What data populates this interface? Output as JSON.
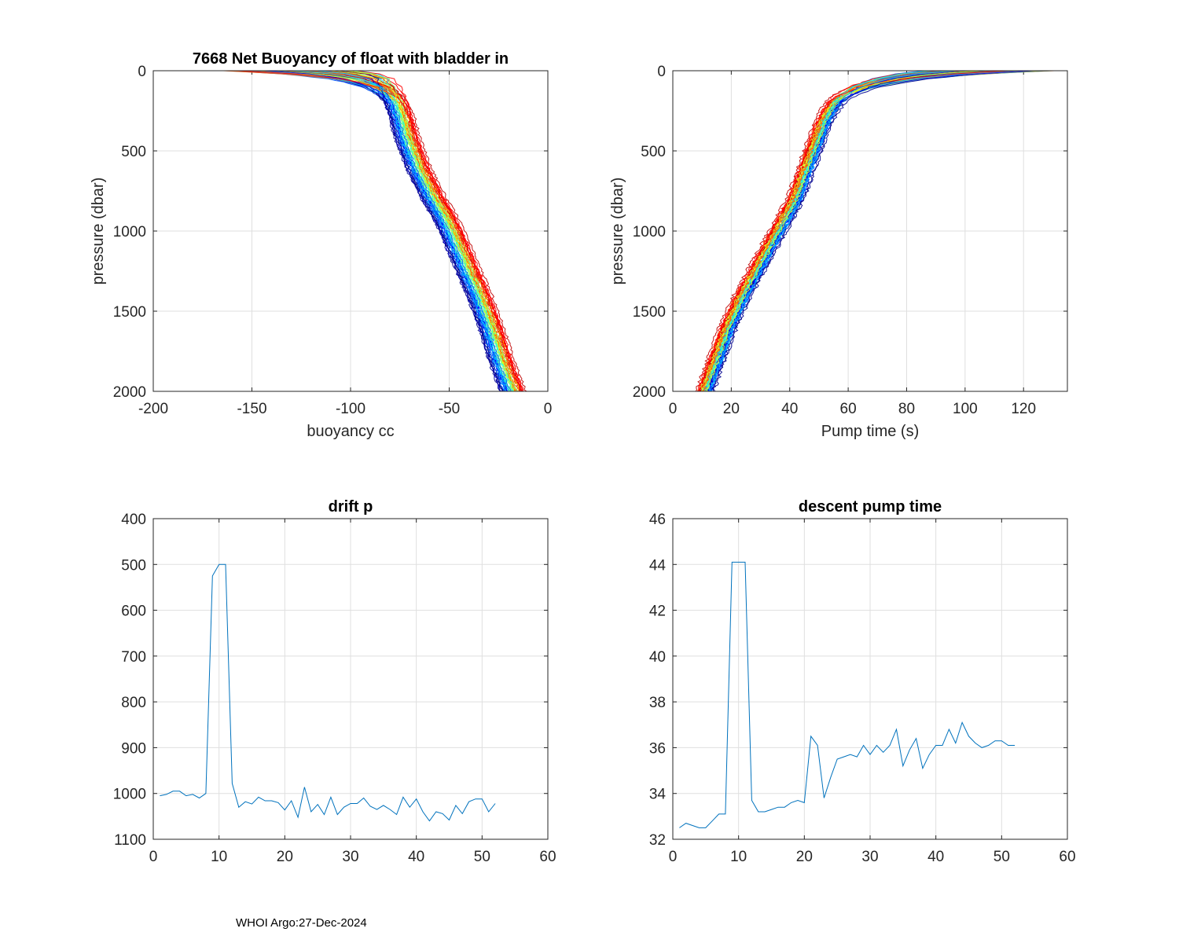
{
  "footer": "WHOI Argo:27-Dec-2024",
  "colors": {
    "axis": "#262626",
    "grid": "#dfdfdf",
    "series": "#0072BD",
    "profile_palette": [
      "#00008f",
      "#0000ff",
      "#0060ff",
      "#00bfff",
      "#20ffdf",
      "#7fff7f",
      "#dfff20",
      "#ffbf00",
      "#ff6000",
      "#ff0000",
      "#bf0000"
    ]
  },
  "chart_data": [
    {
      "type": "line",
      "title": "7668 Net Buoyancy of float with bladder in",
      "xlabel": "buoyancy cc",
      "ylabel": "pressure (dbar)",
      "xlim": [
        -200,
        0
      ],
      "ylim": [
        0,
        2000
      ],
      "y_reversed": true,
      "xticks": [
        -200,
        -150,
        -100,
        -50,
        0
      ],
      "yticks": [
        0,
        500,
        1000,
        1500,
        2000
      ],
      "grid": true,
      "profile_count": 52,
      "profile_x_range_at_2000dbar": [
        -25,
        -12
      ],
      "reference_profile": {
        "pressure": [
          0,
          20,
          50,
          100,
          150,
          200,
          300,
          400,
          500,
          600,
          700,
          800,
          900,
          1000,
          1200,
          1400,
          1600,
          1800,
          2000
        ],
        "buoyancy": [
          -130,
          -110,
          -95,
          -85,
          -80,
          -77,
          -74,
          -72,
          -69,
          -66,
          -62,
          -58,
          -53,
          -49,
          -42,
          -35,
          -29,
          -24,
          -18
        ]
      }
    },
    {
      "type": "line",
      "title": "",
      "xlabel": "Pump time (s)",
      "ylabel": "pressure (dbar)",
      "xlim": [
        0,
        135
      ],
      "ylim": [
        0,
        2000
      ],
      "y_reversed": true,
      "xticks": [
        0,
        20,
        40,
        60,
        80,
        100,
        120
      ],
      "yticks": [
        0,
        500,
        1000,
        1500,
        2000
      ],
      "grid": true,
      "profile_count": 52,
      "reference_profile": {
        "pressure": [
          0,
          20,
          50,
          100,
          150,
          200,
          300,
          400,
          500,
          600,
          700,
          800,
          900,
          1000,
          1200,
          1400,
          1600,
          1800,
          2000
        ],
        "pump_time": [
          95,
          82,
          72,
          63,
          58,
          55,
          52,
          50,
          48,
          46,
          44,
          42,
          39,
          36,
          30,
          24,
          19,
          15,
          11
        ]
      }
    },
    {
      "type": "line",
      "title": "drift p",
      "xlabel": "",
      "ylabel": "",
      "xlim": [
        0,
        60
      ],
      "ylim": [
        400,
        1100
      ],
      "y_reversed": true,
      "xticks": [
        0,
        10,
        20,
        30,
        40,
        50,
        60
      ],
      "yticks": [
        400,
        500,
        600,
        700,
        800,
        900,
        1000,
        1100
      ],
      "grid": true,
      "x": [
        1,
        2,
        3,
        4,
        5,
        6,
        7,
        8,
        9,
        10,
        11,
        12,
        13,
        14,
        15,
        16,
        17,
        18,
        19,
        20,
        21,
        22,
        23,
        24,
        25,
        26,
        27,
        28,
        29,
        30,
        31,
        32,
        33,
        34,
        35,
        36,
        37,
        38,
        39,
        40,
        41,
        42,
        43,
        44,
        45,
        46,
        47,
        48,
        49,
        50,
        51,
        52
      ],
      "values": [
        1005,
        1002,
        995,
        995,
        1005,
        1002,
        1010,
        1000,
        525,
        500,
        500,
        978,
        1030,
        1018,
        1023,
        1008,
        1016,
        1016,
        1020,
        1036,
        1016,
        1052,
        986,
        1040,
        1024,
        1046,
        1008,
        1046,
        1030,
        1022,
        1022,
        1010,
        1028,
        1035,
        1026,
        1035,
        1046,
        1008,
        1030,
        1012,
        1040,
        1060,
        1040,
        1044,
        1058,
        1026,
        1044,
        1018,
        1012,
        1012,
        1040,
        1022
      ]
    },
    {
      "type": "line",
      "title": "descent pump time",
      "xlabel": "",
      "ylabel": "",
      "xlim": [
        0,
        60
      ],
      "ylim": [
        32,
        46
      ],
      "y_reversed": false,
      "xticks": [
        0,
        10,
        20,
        30,
        40,
        50,
        60
      ],
      "yticks": [
        32,
        34,
        36,
        38,
        40,
        42,
        44,
        46
      ],
      "grid": true,
      "x": [
        1,
        2,
        3,
        4,
        5,
        6,
        7,
        8,
        9,
        10,
        11,
        12,
        13,
        14,
        15,
        16,
        17,
        18,
        19,
        20,
        21,
        22,
        23,
        24,
        25,
        26,
        27,
        28,
        29,
        30,
        31,
        32,
        33,
        34,
        35,
        36,
        37,
        38,
        39,
        40,
        41,
        42,
        43,
        44,
        45,
        46,
        47,
        48,
        49,
        50,
        51,
        52
      ],
      "values": [
        32.5,
        32.7,
        32.6,
        32.5,
        32.5,
        32.8,
        33.1,
        33.1,
        44.1,
        44.1,
        44.1,
        33.7,
        33.2,
        33.2,
        33.3,
        33.4,
        33.4,
        33.6,
        33.7,
        33.6,
        36.5,
        36.1,
        33.8,
        34.7,
        35.5,
        35.6,
        35.7,
        35.6,
        36.1,
        35.7,
        36.1,
        35.8,
        36.1,
        36.8,
        35.2,
        35.9,
        36.4,
        35.1,
        35.7,
        36.1,
        36.1,
        36.8,
        36.2,
        37.1,
        36.5,
        36.2,
        36.0,
        36.1,
        36.3,
        36.3,
        36.1,
        36.1
      ]
    }
  ]
}
